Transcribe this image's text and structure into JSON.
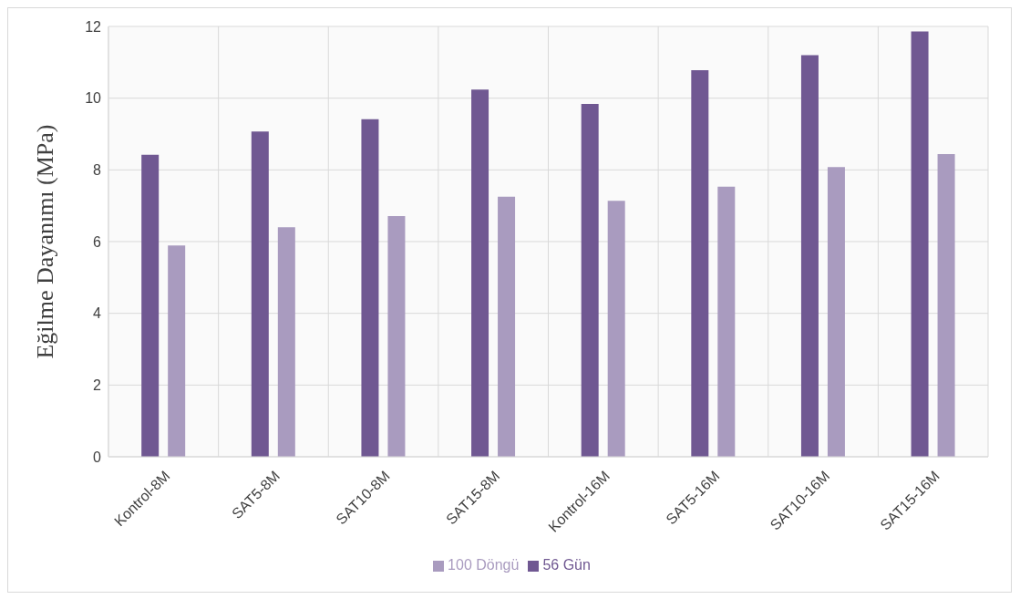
{
  "chart_data": {
    "type": "bar",
    "ylabel": "Eğilme Dayanımı (MPa)",
    "categories": [
      "Kontrol-8M",
      "SAT5-8M",
      "SAT10-8M",
      "SAT15-8M",
      "Kontrol-16M",
      "SAT5-16M",
      "SAT10-16M",
      "SAT15-16M"
    ],
    "series": [
      {
        "name": "56 Gün",
        "color": "#705892",
        "values": [
          8.42,
          9.07,
          9.41,
          10.24,
          9.84,
          10.78,
          11.2,
          11.86
        ]
      },
      {
        "name": "100 Döngü",
        "color": "#a99bbf",
        "values": [
          5.89,
          6.4,
          6.71,
          7.25,
          7.14,
          7.53,
          8.08,
          8.44
        ]
      }
    ],
    "ylim": [
      0,
      12
    ],
    "yticks": [
      0,
      2,
      4,
      6,
      8,
      10,
      12
    ],
    "grid": true,
    "legend": "bottom"
  }
}
